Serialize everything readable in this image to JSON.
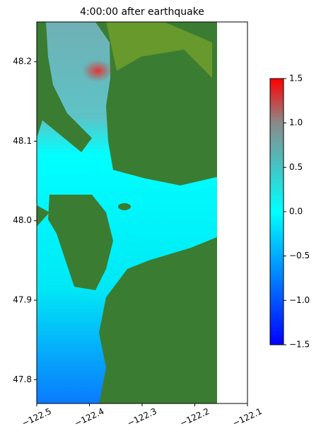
{
  "chart_data": {
    "type": "map",
    "title": "4:00:00 after earthquake",
    "xlim": [
      -122.5,
      -122.1
    ],
    "xticks": [
      {
        "value": -122.5,
        "label": "−122.5"
      },
      {
        "value": -122.4,
        "label": "−122.4"
      },
      {
        "value": -122.3,
        "label": "−122.3"
      },
      {
        "value": -122.2,
        "label": "−122.2"
      },
      {
        "value": -122.1,
        "label": "−122.1"
      }
    ],
    "ylim": [
      47.77,
      48.25
    ],
    "yticks": [
      47.8,
      47.9,
      {
        "value": 48.0,
        "label": "48.0"
      },
      48.1,
      48.2
    ],
    "colorbar": {
      "lim": [
        -1.5,
        1.5
      ],
      "ticks": [
        {
          "value": -1.5,
          "label": "−1.5"
        },
        {
          "value": -1.0,
          "label": "−1.0"
        },
        {
          "value": -0.5,
          "label": "−0.5"
        },
        {
          "value": 0.0,
          "label": "0.0"
        },
        0.5,
        {
          "value": 1.0,
          "label": "1.0"
        },
        1.5
      ],
      "stops": [
        {
          "value": -1.5,
          "color": "#0000ff"
        },
        {
          "value": 0.0,
          "color": "#00ffff"
        },
        {
          "value": 1.0,
          "color": "#8a8a8a"
        },
        {
          "value": 1.5,
          "color": "#ff0000"
        }
      ]
    }
  }
}
